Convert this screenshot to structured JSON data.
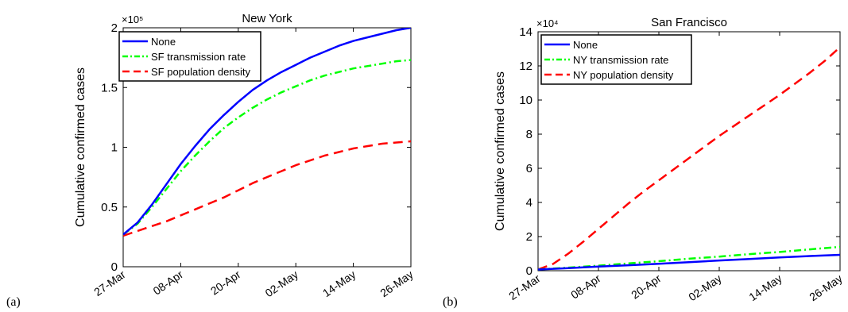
{
  "chart_data": [
    {
      "panel_label": "(a)",
      "type": "line",
      "title": "New York",
      "ylabel": "Cumulative confirmed cases",
      "xlabel": "",
      "y_exponent_label": "×10⁵",
      "x_tick_labels": [
        "27-Mar",
        "08-Apr",
        "20-Apr",
        "02-May",
        "14-May",
        "26-May"
      ],
      "x_ticks": [
        0,
        12,
        24,
        36,
        48,
        60
      ],
      "xlim": [
        0,
        60
      ],
      "y_tick_labels": [
        "0",
        "0.5",
        "1",
        "1.5",
        "2"
      ],
      "y_ticks": [
        0,
        0.5,
        1,
        1.5,
        2
      ],
      "ylim": [
        0,
        2
      ],
      "legend_position": "top-left",
      "grid": false,
      "series": [
        {
          "name": "None",
          "color": "#0000ff",
          "style": "solid",
          "x": [
            0,
            3,
            6,
            9,
            12,
            15,
            18,
            21,
            24,
            27,
            30,
            33,
            36,
            39,
            42,
            45,
            48,
            51,
            54,
            57,
            60
          ],
          "values": [
            0.27,
            0.37,
            0.52,
            0.69,
            0.86,
            1.01,
            1.15,
            1.27,
            1.38,
            1.48,
            1.56,
            1.63,
            1.69,
            1.75,
            1.8,
            1.85,
            1.89,
            1.92,
            1.95,
            1.98,
            2.0
          ]
        },
        {
          "name": "SF transmission rate",
          "color": "#00ff00",
          "style": "dashdot",
          "x": [
            0,
            3,
            6,
            9,
            12,
            15,
            18,
            21,
            24,
            27,
            30,
            33,
            36,
            39,
            42,
            45,
            48,
            51,
            54,
            57,
            60
          ],
          "values": [
            0.27,
            0.36,
            0.5,
            0.65,
            0.8,
            0.93,
            1.05,
            1.16,
            1.25,
            1.33,
            1.4,
            1.46,
            1.51,
            1.56,
            1.6,
            1.63,
            1.66,
            1.68,
            1.7,
            1.72,
            1.73
          ]
        },
        {
          "name": "SF population density",
          "color": "#ff0000",
          "style": "dashed",
          "x": [
            0,
            3,
            6,
            9,
            12,
            15,
            18,
            21,
            24,
            27,
            30,
            33,
            36,
            39,
            42,
            45,
            48,
            51,
            54,
            57,
            60
          ],
          "values": [
            0.26,
            0.3,
            0.34,
            0.38,
            0.43,
            0.48,
            0.53,
            0.58,
            0.64,
            0.7,
            0.75,
            0.8,
            0.85,
            0.89,
            0.93,
            0.96,
            0.99,
            1.01,
            1.03,
            1.04,
            1.05
          ]
        }
      ]
    },
    {
      "panel_label": "(b)",
      "type": "line",
      "title": "San Francisco",
      "ylabel": "Cumulative confirmed cases",
      "xlabel": "",
      "y_exponent_label": "×10⁴",
      "x_tick_labels": [
        "27-Mar",
        "08-Apr",
        "20-Apr",
        "02-May",
        "14-May",
        "26-May"
      ],
      "x_ticks": [
        0,
        12,
        24,
        36,
        48,
        60
      ],
      "xlim": [
        0,
        60
      ],
      "y_tick_labels": [
        "0",
        "2",
        "4",
        "6",
        "8",
        "10",
        "12",
        "14"
      ],
      "y_ticks": [
        0,
        2,
        4,
        6,
        8,
        10,
        12,
        14
      ],
      "ylim": [
        0,
        14
      ],
      "legend_position": "top-left",
      "grid": false,
      "series": [
        {
          "name": "None",
          "color": "#0000ff",
          "style": "solid",
          "x": [
            0,
            6,
            12,
            18,
            24,
            30,
            36,
            42,
            48,
            54,
            60
          ],
          "values": [
            0.07,
            0.15,
            0.24,
            0.32,
            0.41,
            0.5,
            0.6,
            0.69,
            0.78,
            0.86,
            0.93
          ]
        },
        {
          "name": "NY transmission rate",
          "color": "#00ff00",
          "style": "dashdot",
          "x": [
            0,
            6,
            12,
            18,
            24,
            30,
            36,
            42,
            48,
            54,
            60
          ],
          "values": [
            0.07,
            0.18,
            0.3,
            0.43,
            0.56,
            0.7,
            0.83,
            0.97,
            1.1,
            1.25,
            1.4
          ]
        },
        {
          "name": "NY population density",
          "color": "#ff0000",
          "style": "dashed",
          "x": [
            0,
            3,
            6,
            9,
            12,
            15,
            18,
            21,
            24,
            27,
            30,
            33,
            36,
            39,
            42,
            45,
            48,
            51,
            54,
            57,
            60
          ],
          "values": [
            0.07,
            0.4,
            1.0,
            1.7,
            2.45,
            3.2,
            3.95,
            4.65,
            5.3,
            5.95,
            6.6,
            7.25,
            7.9,
            8.5,
            9.1,
            9.7,
            10.3,
            10.95,
            11.6,
            12.3,
            13.1
          ]
        }
      ]
    }
  ]
}
